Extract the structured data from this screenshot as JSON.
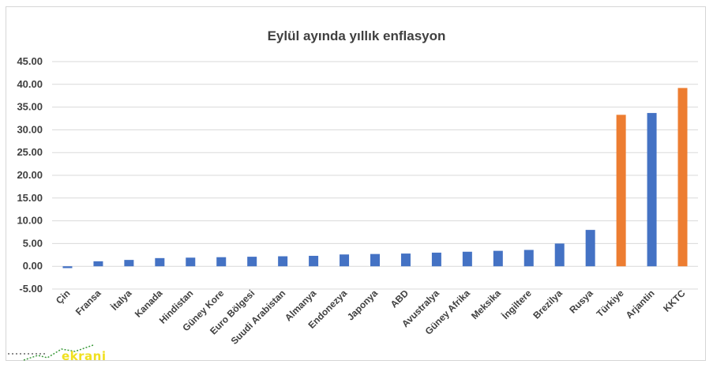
{
  "chart_data": {
    "type": "bar",
    "title": "Eylül ayında yıllık enflasyon",
    "xlabel": "",
    "ylabel": "",
    "ylim": [
      -5,
      45
    ],
    "yticks": [
      "45.00",
      "40.00",
      "35.00",
      "30.00",
      "25.00",
      "20.00",
      "15.00",
      "10.00",
      "5.00",
      "0.00",
      "-5.00"
    ],
    "grid": true,
    "categories": [
      "Çin",
      "Fransa",
      "İtalya",
      "Kanada",
      "Hindistan",
      "Güney Kore",
      "Euro Bölgesi",
      "Suudi Arabistan",
      "Almanya",
      "Endonezya",
      "Japonya",
      "ABD",
      "Avustralya",
      "Güney Afrika",
      "Meksika",
      "İngiltere",
      "Brezilya",
      "Rusya",
      "Türkiye",
      "Arjantin",
      "KKTC"
    ],
    "values": [
      -0.4,
      1.1,
      1.4,
      1.8,
      1.9,
      2.0,
      2.1,
      2.2,
      2.3,
      2.6,
      2.7,
      2.8,
      3.0,
      3.2,
      3.4,
      3.6,
      5.0,
      8.0,
      33.3,
      33.7,
      39.2
    ],
    "colors": [
      "#4472c4",
      "#4472c4",
      "#4472c4",
      "#4472c4",
      "#4472c4",
      "#4472c4",
      "#4472c4",
      "#4472c4",
      "#4472c4",
      "#4472c4",
      "#4472c4",
      "#4472c4",
      "#4472c4",
      "#4472c4",
      "#4472c4",
      "#4472c4",
      "#4472c4",
      "#4472c4",
      "#ed7d31",
      "#4472c4",
      "#ed7d31"
    ]
  },
  "watermark": {
    "text": "ekrani"
  }
}
